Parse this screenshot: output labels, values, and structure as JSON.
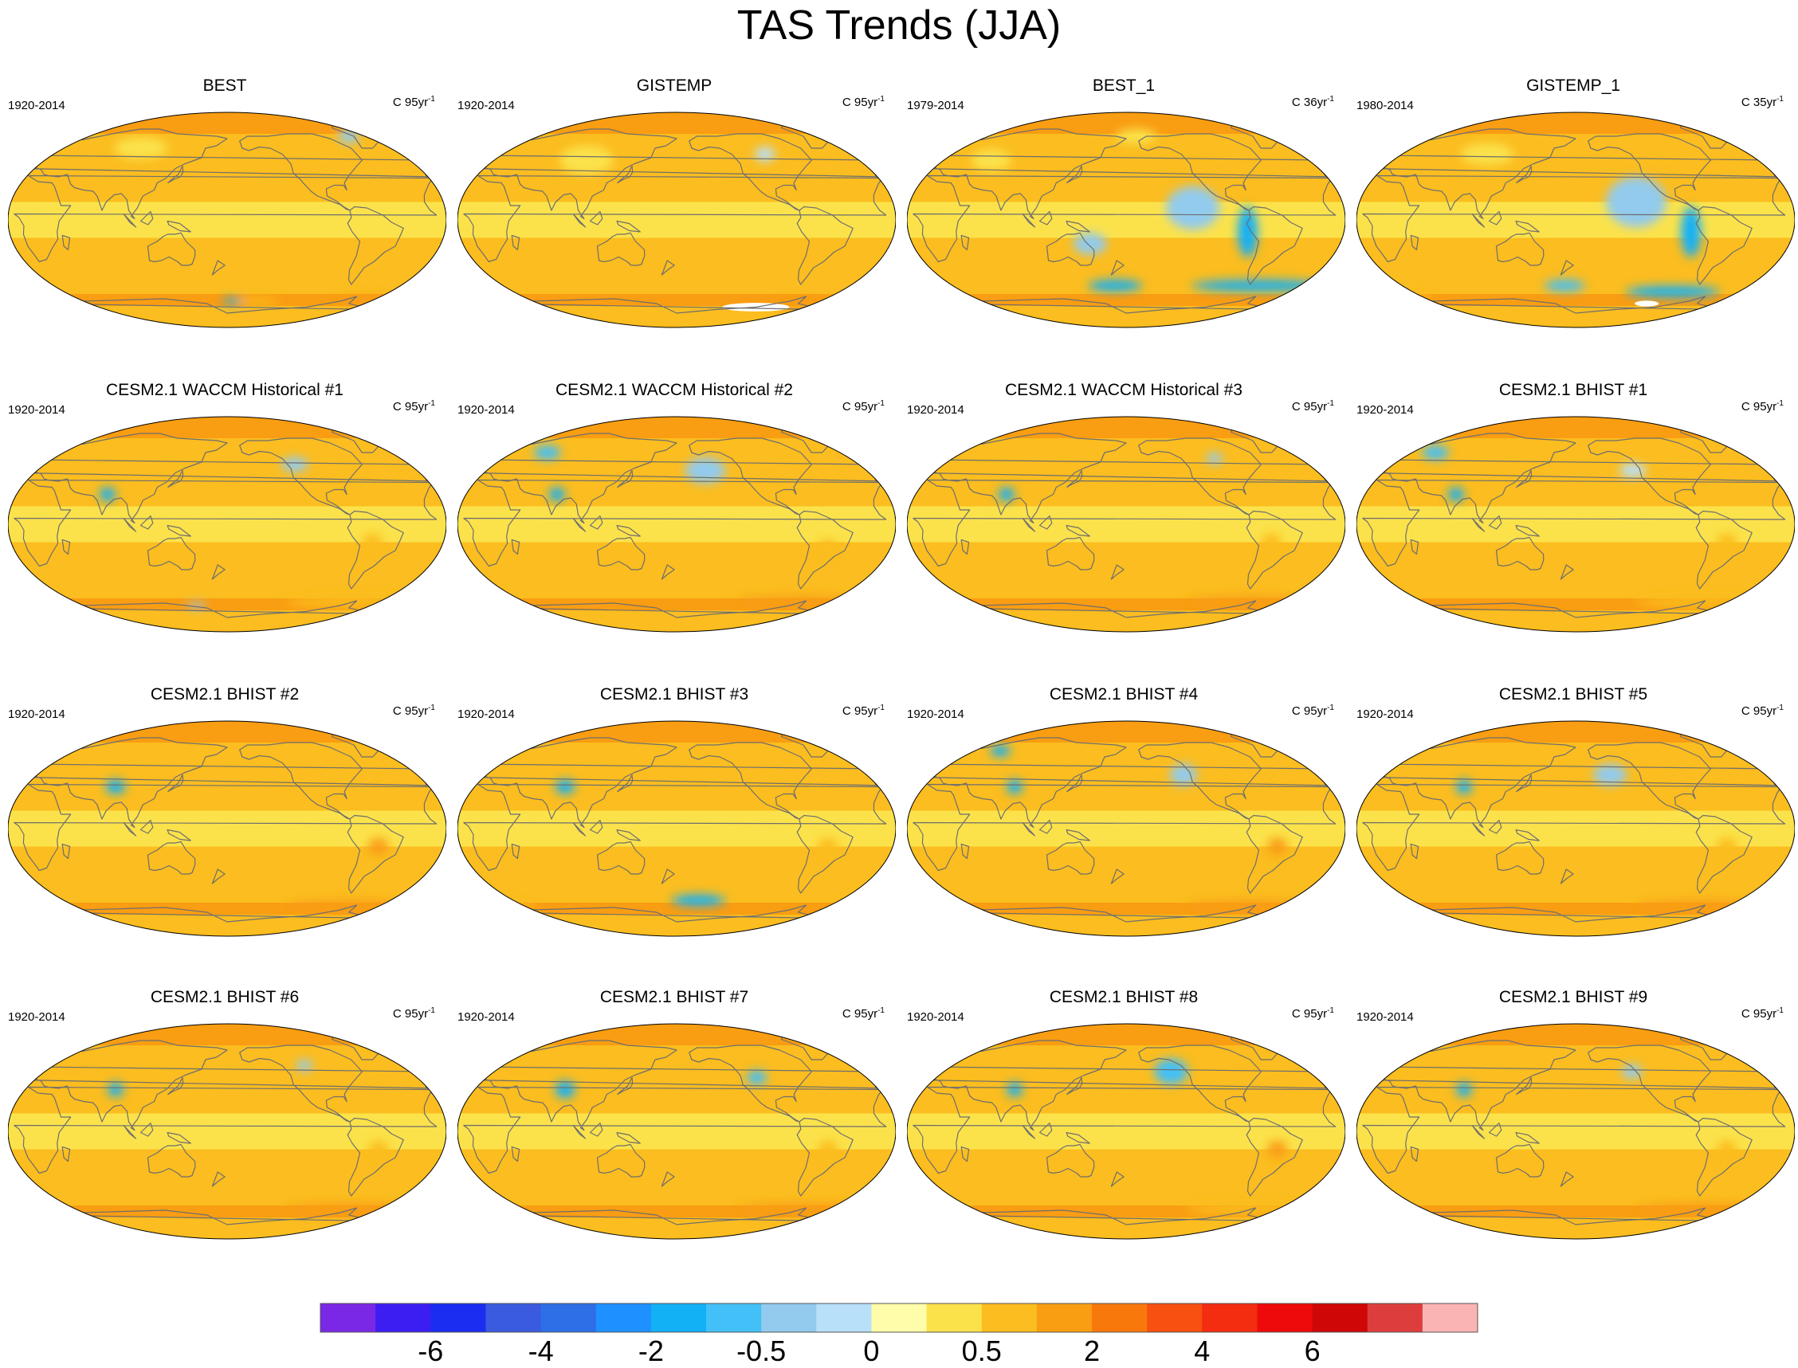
{
  "chart_data": {
    "type": "heatmap",
    "title": "TAS Trends (JJA)",
    "projection": "Robinson global maps, 4 x 4 panel grid",
    "panels": [
      {
        "title": "BEST",
        "period": "1920-2014",
        "units_base": "C 95yr",
        "units_exp": "-1",
        "features": [
          {
            "type": "warm",
            "lon": -40,
            "lat": -68,
            "w": 50,
            "h": 6,
            "level": 13
          },
          {
            "type": "warm",
            "lon": -150,
            "lat": -68,
            "w": 30,
            "h": 5,
            "level": 12
          },
          {
            "type": "cool",
            "lon": -175,
            "lat": -68,
            "w": 15,
            "h": 4,
            "level": 6
          },
          {
            "type": "cool",
            "lon": -60,
            "lat": 70,
            "w": 15,
            "h": 10,
            "level": 8
          },
          {
            "type": "warm",
            "lon": 100,
            "lat": 60,
            "w": 40,
            "h": 15,
            "level": 11
          }
        ]
      },
      {
        "title": "GISTEMP",
        "period": "1920-2014",
        "units_base": "C 95yr",
        "units_exp": "-1",
        "features": [
          {
            "type": "missing",
            "lon": -100,
            "lat": -73,
            "w": 50,
            "h": 6
          },
          {
            "type": "warm",
            "lon": -60,
            "lat": -72,
            "w": 30,
            "h": 6,
            "level": 13
          },
          {
            "type": "warm",
            "lon": -20,
            "lat": -70,
            "w": 20,
            "h": 4,
            "level": 12
          },
          {
            "type": "cool",
            "lon": -100,
            "lat": 55,
            "w": 15,
            "h": 10,
            "level": 9
          },
          {
            "type": "warm",
            "lon": 100,
            "lat": 50,
            "w": 40,
            "h": 20,
            "level": 11
          }
        ]
      },
      {
        "title": "BEST_1",
        "period": "1979-2014",
        "units_base": "C 36yr",
        "units_exp": "-1",
        "features": [
          {
            "type": "cool",
            "lon": -125,
            "lat": 10,
            "w": 40,
            "h": 30,
            "level": 8
          },
          {
            "type": "cool",
            "lon": -80,
            "lat": -10,
            "w": 15,
            "h": 35,
            "level": 6
          },
          {
            "type": "cool",
            "lon": -60,
            "lat": -55,
            "w": 100,
            "h": 8,
            "level": 6
          },
          {
            "type": "cool",
            "lon": 170,
            "lat": -55,
            "w": 40,
            "h": 8,
            "level": 6
          },
          {
            "type": "cool",
            "lon": 150,
            "lat": -20,
            "w": 25,
            "h": 15,
            "level": 8
          },
          {
            "type": "warm",
            "lon": 60,
            "lat": 50,
            "w": 30,
            "h": 15,
            "level": 11
          },
          {
            "type": "warm",
            "lon": -170,
            "lat": 70,
            "w": 30,
            "h": 10,
            "level": 11
          }
        ]
      },
      {
        "title": "GISTEMP_1",
        "period": "1980-2014",
        "units_base": "C 35yr",
        "units_exp": "-1",
        "features": [
          {
            "type": "cool",
            "lon": -130,
            "lat": 15,
            "w": 45,
            "h": 35,
            "level": 8
          },
          {
            "type": "cool",
            "lon": -85,
            "lat": -10,
            "w": 15,
            "h": 35,
            "level": 6
          },
          {
            "type": "cool",
            "lon": -90,
            "lat": -60,
            "w": 70,
            "h": 8,
            "level": 6
          },
          {
            "type": "cool",
            "lon": 170,
            "lat": -55,
            "w": 30,
            "h": 8,
            "level": 7
          },
          {
            "type": "missing",
            "lon": -110,
            "lat": -70,
            "w": 18,
            "h": 4
          },
          {
            "type": "warm",
            "lon": 30,
            "lat": -65,
            "w": 20,
            "h": 5,
            "level": 12
          },
          {
            "type": "warm",
            "lon": 100,
            "lat": 55,
            "w": 40,
            "h": 15,
            "level": 11
          }
        ]
      },
      {
        "title": "CESM2.1 WACCM Historical #1",
        "period": "1920-2014",
        "units_base": "C 95yr",
        "units_exp": "-1",
        "features": [
          {
            "type": "cool",
            "lon": 80,
            "lat": 25,
            "w": 12,
            "h": 10,
            "level": 6
          },
          {
            "type": "cool",
            "lon": -120,
            "lat": 50,
            "w": 20,
            "h": 10,
            "level": 8
          },
          {
            "type": "warm",
            "lon": -60,
            "lat": -15,
            "w": 15,
            "h": 12,
            "level": 12
          },
          {
            "type": "warm",
            "lon": -60,
            "lat": -65,
            "w": 100,
            "h": 8,
            "level": 12
          },
          {
            "type": "cool",
            "lon": 150,
            "lat": -68,
            "w": 15,
            "h": 4,
            "level": 8
          }
        ]
      },
      {
        "title": "CESM2.1 WACCM Historical #2",
        "period": "1920-2014",
        "units_base": "C 95yr",
        "units_exp": "-1",
        "features": [
          {
            "type": "cool",
            "lon": -155,
            "lat": 45,
            "w": 30,
            "h": 18,
            "level": 8
          },
          {
            "type": "cool",
            "lon": 80,
            "lat": 25,
            "w": 12,
            "h": 10,
            "level": 6
          },
          {
            "type": "cool",
            "lon": 60,
            "lat": 60,
            "w": 20,
            "h": 10,
            "level": 7
          },
          {
            "type": "warm",
            "lon": -55,
            "lat": -20,
            "w": 15,
            "h": 12,
            "level": 12
          },
          {
            "type": "warm",
            "lon": -60,
            "lat": -65,
            "w": 100,
            "h": 8,
            "level": 13
          }
        ]
      },
      {
        "title": "CESM2.1 WACCM Historical #3",
        "period": "1920-2014",
        "units_base": "C 95yr",
        "units_exp": "-1",
        "features": [
          {
            "type": "cool",
            "lon": 80,
            "lat": 25,
            "w": 12,
            "h": 10,
            "level": 6
          },
          {
            "type": "cool",
            "lon": -100,
            "lat": 55,
            "w": 12,
            "h": 8,
            "level": 8
          },
          {
            "type": "warm",
            "lon": -60,
            "lat": -15,
            "w": 15,
            "h": 12,
            "level": 12
          },
          {
            "type": "warm",
            "lon": -60,
            "lat": -65,
            "w": 100,
            "h": 8,
            "level": 13
          }
        ]
      },
      {
        "title": "CESM2.1 BHIST #1",
        "period": "1920-2014",
        "units_base": "C 95yr",
        "units_exp": "-1",
        "features": [
          {
            "type": "cool",
            "lon": 80,
            "lat": 25,
            "w": 12,
            "h": 10,
            "level": 6
          },
          {
            "type": "cool",
            "lon": 50,
            "lat": 60,
            "w": 20,
            "h": 10,
            "level": 7
          },
          {
            "type": "cool",
            "lon": -130,
            "lat": 45,
            "w": 20,
            "h": 10,
            "level": 9
          },
          {
            "type": "warm",
            "lon": -55,
            "lat": -15,
            "w": 15,
            "h": 12,
            "level": 12
          },
          {
            "type": "warm",
            "lon": -60,
            "lat": -65,
            "w": 100,
            "h": 8,
            "level": 12
          }
        ]
      },
      {
        "title": "CESM2.1 BHIST #2",
        "period": "1920-2014",
        "units_base": "C 95yr",
        "units_exp": "-1",
        "features": [
          {
            "type": "cool",
            "lon": 85,
            "lat": 35,
            "w": 15,
            "h": 10,
            "level": 6
          },
          {
            "type": "warm",
            "lon": -55,
            "lat": -15,
            "w": 15,
            "h": 12,
            "level": 13
          },
          {
            "type": "warm",
            "lon": -60,
            "lat": -65,
            "w": 100,
            "h": 8,
            "level": 13
          }
        ]
      },
      {
        "title": "CESM2.1 BHIST #3",
        "period": "1920-2014",
        "units_base": "C 95yr",
        "units_exp": "-1",
        "features": [
          {
            "type": "cool",
            "lon": 85,
            "lat": 35,
            "w": 15,
            "h": 10,
            "level": 6
          },
          {
            "type": "cool",
            "lon": -160,
            "lat": -60,
            "w": 40,
            "h": 8,
            "level": 6
          },
          {
            "type": "warm",
            "lon": -55,
            "lat": -15,
            "w": 15,
            "h": 12,
            "level": 12
          },
          {
            "type": "warm",
            "lon": 20,
            "lat": -65,
            "w": 40,
            "h": 6,
            "level": 12
          }
        ]
      },
      {
        "title": "CESM2.1 BHIST #4",
        "period": "1920-2014",
        "units_base": "C 95yr",
        "units_exp": "-1",
        "features": [
          {
            "type": "cool",
            "lon": -130,
            "lat": 45,
            "w": 20,
            "h": 15,
            "level": 8
          },
          {
            "type": "cool",
            "lon": 85,
            "lat": 35,
            "w": 12,
            "h": 10,
            "level": 6
          },
          {
            "type": "cool",
            "lon": 60,
            "lat": 65,
            "w": 15,
            "h": 8,
            "level": 6
          },
          {
            "type": "warm",
            "lon": -55,
            "lat": -15,
            "w": 15,
            "h": 12,
            "level": 13
          },
          {
            "type": "warm",
            "lon": -60,
            "lat": -65,
            "w": 100,
            "h": 8,
            "level": 13
          }
        ]
      },
      {
        "title": "CESM2.1 BHIST #5",
        "period": "1920-2014",
        "units_base": "C 95yr",
        "units_exp": "-1",
        "features": [
          {
            "type": "cool",
            "lon": -150,
            "lat": 45,
            "w": 25,
            "h": 15,
            "level": 8
          },
          {
            "type": "cool",
            "lon": 85,
            "lat": 35,
            "w": 12,
            "h": 10,
            "level": 6
          },
          {
            "type": "warm",
            "lon": -55,
            "lat": -15,
            "w": 15,
            "h": 12,
            "level": 12
          },
          {
            "type": "warm",
            "lon": -60,
            "lat": -65,
            "w": 100,
            "h": 8,
            "level": 13
          }
        ]
      },
      {
        "title": "CESM2.1 BHIST #6",
        "period": "1920-2014",
        "units_base": "C 95yr",
        "units_exp": "-1",
        "features": [
          {
            "type": "cool",
            "lon": 85,
            "lat": 35,
            "w": 12,
            "h": 10,
            "level": 6
          },
          {
            "type": "cool",
            "lon": -110,
            "lat": 55,
            "w": 12,
            "h": 8,
            "level": 8
          },
          {
            "type": "warm",
            "lon": -55,
            "lat": -15,
            "w": 15,
            "h": 12,
            "level": 12
          },
          {
            "type": "warm",
            "lon": -60,
            "lat": -65,
            "w": 100,
            "h": 8,
            "level": 13
          }
        ]
      },
      {
        "title": "CESM2.1 BHIST #7",
        "period": "1920-2014",
        "units_base": "C 95yr",
        "units_exp": "-1",
        "features": [
          {
            "type": "cool",
            "lon": 85,
            "lat": 35,
            "w": 15,
            "h": 12,
            "level": 6
          },
          {
            "type": "cool",
            "lon": -110,
            "lat": 45,
            "w": 15,
            "h": 10,
            "level": 7
          },
          {
            "type": "warm",
            "lon": -55,
            "lat": -15,
            "w": 15,
            "h": 12,
            "level": 12
          },
          {
            "type": "warm",
            "lon": -60,
            "lat": -65,
            "w": 100,
            "h": 8,
            "level": 13
          }
        ]
      },
      {
        "title": "CESM2.1 BHIST #8",
        "period": "1920-2014",
        "units_base": "C 95yr",
        "units_exp": "-1",
        "features": [
          {
            "type": "cool",
            "lon": -140,
            "lat": 50,
            "w": 25,
            "h": 18,
            "level": 7
          },
          {
            "type": "cool",
            "lon": 85,
            "lat": 35,
            "w": 12,
            "h": 10,
            "level": 6
          },
          {
            "type": "warm",
            "lon": -55,
            "lat": -15,
            "w": 15,
            "h": 12,
            "level": 13
          },
          {
            "type": "warm",
            "lon": -60,
            "lat": -65,
            "w": 100,
            "h": 8,
            "level": 12
          }
        ]
      },
      {
        "title": "CESM2.1 BHIST #9",
        "period": "1920-2014",
        "units_base": "C 95yr",
        "units_exp": "-1",
        "features": [
          {
            "type": "cool",
            "lon": 85,
            "lat": 35,
            "w": 12,
            "h": 10,
            "level": 6
          },
          {
            "type": "cool",
            "lon": -130,
            "lat": 50,
            "w": 15,
            "h": 10,
            "level": 8
          },
          {
            "type": "warm",
            "lon": -55,
            "lat": -15,
            "w": 15,
            "h": 12,
            "level": 12
          },
          {
            "type": "warm",
            "lon": -60,
            "lat": -65,
            "w": 100,
            "h": 8,
            "level": 13
          }
        ]
      }
    ],
    "colorbar": {
      "colors": [
        "#7b28e6",
        "#3c1ef2",
        "#1a2df0",
        "#3a5ae0",
        "#2e6ee6",
        "#1e90ff",
        "#12b0f5",
        "#42c0f7",
        "#92cbed",
        "#b8e0f8",
        "#fffcaa",
        "#fbe24b",
        "#fbbd1f",
        "#f99d12",
        "#f9780c",
        "#f75010",
        "#f42c10",
        "#ee0a0a",
        "#cf0707",
        "#de3d3d",
        "#fbb4b4"
      ],
      "labels": [
        {
          "at_color_boundary": 2,
          "text": "-6"
        },
        {
          "at_color_boundary": 4,
          "text": "-4"
        },
        {
          "at_color_boundary": 6,
          "text": "-2"
        },
        {
          "at_color_boundary": 8,
          "text": "-0.5"
        },
        {
          "at_color_boundary": 10,
          "text": "0"
        },
        {
          "at_color_boundary": 12,
          "text": "0.5"
        },
        {
          "at_color_boundary": 14,
          "text": "2"
        },
        {
          "at_color_boundary": 16,
          "text": "4"
        },
        {
          "at_color_boundary": 18,
          "text": "6"
        }
      ]
    }
  }
}
